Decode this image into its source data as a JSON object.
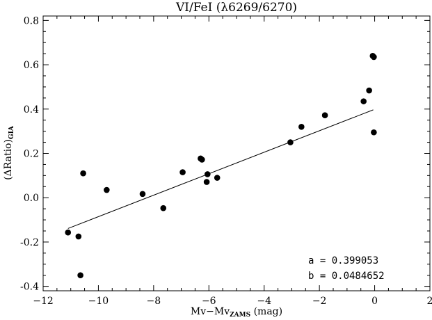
{
  "chart_data": {
    "type": "scatter",
    "title": "VI/FeI (λ6269/6270)",
    "xlabel": {
      "main": "Mv−Mv",
      "sub": "ZAMS",
      "suffix": " (mag)"
    },
    "ylabel": {
      "main": "(ΔRatio)",
      "sub": "GIA"
    },
    "xlim": [
      -12,
      2
    ],
    "ylim": [
      -0.42,
      0.82
    ],
    "xticks": [
      -12,
      -10,
      -8,
      -6,
      -4,
      -2,
      0,
      2
    ],
    "xtick_labels": [
      "−12",
      "−10",
      "−8",
      "−6",
      "−4",
      "−2",
      "0",
      "2"
    ],
    "yticks": [
      -0.4,
      -0.2,
      0.0,
      0.2,
      0.4,
      0.6,
      0.8
    ],
    "ytick_labels": [
      "-0.4",
      "-0.2",
      "0.0",
      "0.2",
      "0.4",
      "0.6",
      "0.8"
    ],
    "grid": false,
    "points": [
      {
        "x": -11.1,
        "y": -0.157
      },
      {
        "x": -10.72,
        "y": -0.175
      },
      {
        "x": -10.65,
        "y": -0.35
      },
      {
        "x": -10.55,
        "y": 0.11
      },
      {
        "x": -9.7,
        "y": 0.035
      },
      {
        "x": -8.4,
        "y": 0.017
      },
      {
        "x": -7.65,
        "y": -0.047
      },
      {
        "x": -6.95,
        "y": 0.115
      },
      {
        "x": -6.3,
        "y": 0.177
      },
      {
        "x": -6.25,
        "y": 0.172
      },
      {
        "x": -6.05,
        "y": 0.106
      },
      {
        "x": -6.08,
        "y": 0.071
      },
      {
        "x": -5.7,
        "y": 0.09
      },
      {
        "x": -3.05,
        "y": 0.25
      },
      {
        "x": -2.65,
        "y": 0.32
      },
      {
        "x": -1.8,
        "y": 0.372
      },
      {
        "x": -0.4,
        "y": 0.435
      },
      {
        "x": -0.2,
        "y": 0.484
      },
      {
        "x": -0.07,
        "y": 0.64
      },
      {
        "x": -0.03,
        "y": 0.635
      },
      {
        "x": -0.03,
        "y": 0.295
      }
    ],
    "fit_line": {
      "x": [
        -11.1,
        -0.05
      ],
      "slope": 0.0484652,
      "intercept": 0.399053
    },
    "annotations": [
      "a = 0.399053",
      "b = 0.0484652"
    ]
  }
}
